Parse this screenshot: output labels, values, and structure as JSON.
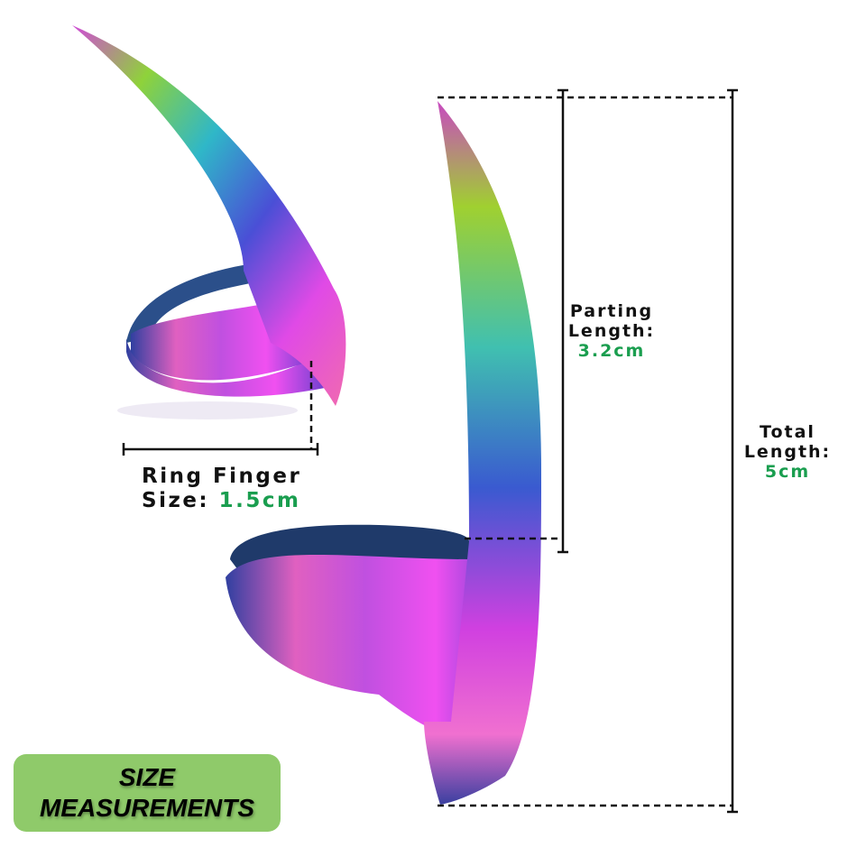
{
  "badge": {
    "line1": "SIZE",
    "line2": "MEASUREMENTS",
    "color": "#8fca6a"
  },
  "ring_finger": {
    "label": "Ring Finger",
    "size_label": "Size:",
    "value": "1.5cm"
  },
  "parting_length": {
    "label_line1": "Parting",
    "label_line2": "Length:",
    "value": "3.2cm"
  },
  "total_length": {
    "label_line1": "Total",
    "label_line2": "Length:",
    "value": "5cm"
  },
  "colors": {
    "value_text": "#1a9e4f",
    "lines": "#111111"
  },
  "product": {
    "name": "iridescent-claw-ring"
  }
}
